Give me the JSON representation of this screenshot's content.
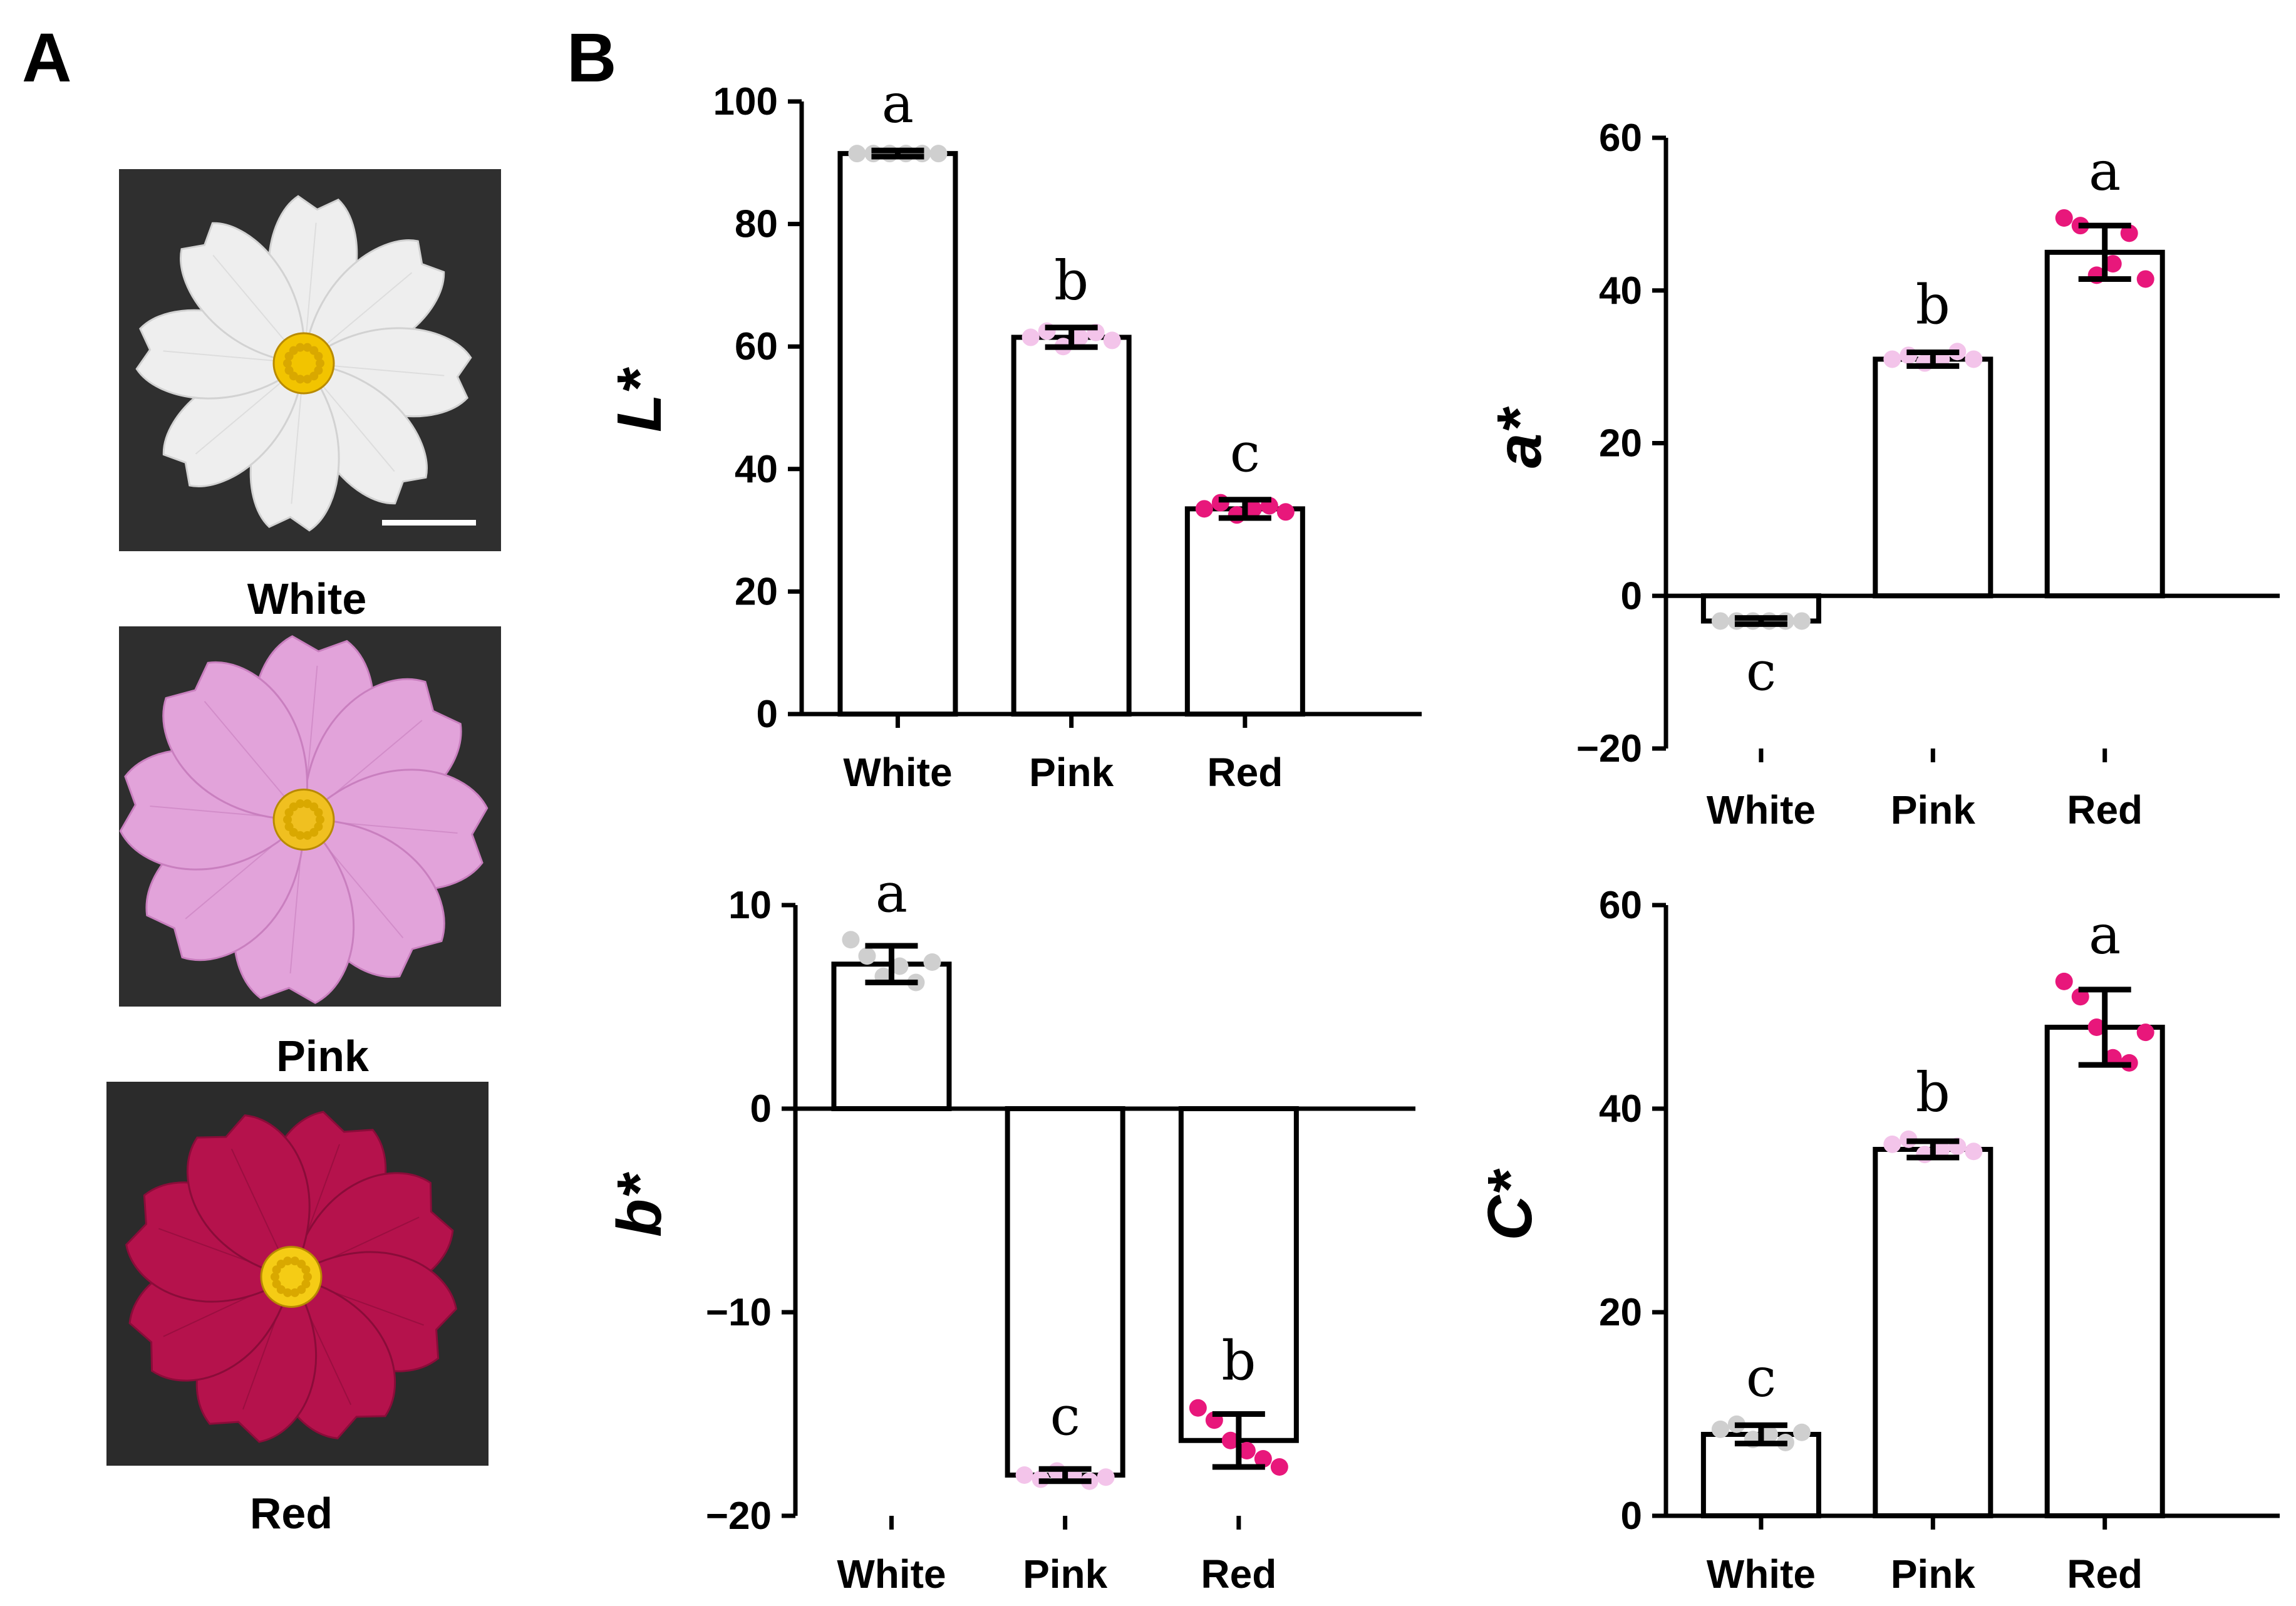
{
  "panel_labels": {
    "a": "A",
    "b": "B"
  },
  "photos": [
    {
      "label": "White",
      "bg": "#2f2f2f",
      "petal": "#eeeeee",
      "petal_edge": "#d2d2d2",
      "center": "#f2c400"
    },
    {
      "label": "Pink",
      "bg": "#2e2e2e",
      "petal": "#e2a3da",
      "petal_edge": "#c97fbf",
      "center": "#f0c020"
    },
    {
      "label": "Red",
      "bg": "#2b2b2b",
      "petal": "#b5124c",
      "petal_edge": "#8a0c39",
      "center": "#f5cc15"
    }
  ],
  "colors": {
    "White": "#cfcfcf",
    "Pink": "#f3c4ea",
    "Red": "#e8177b"
  },
  "chart_data": [
    {
      "type": "bar",
      "title": "",
      "ylabel": "L*",
      "xlabel": "",
      "categories": [
        "White",
        "Pink",
        "Red"
      ],
      "values": [
        91.5,
        61.5,
        33.5
      ],
      "errors": [
        0.5,
        1.6,
        1.5
      ],
      "points": [
        [
          91.5,
          91.5,
          91.5,
          91.5,
          91.5,
          91.5
        ],
        [
          61.5,
          62.5,
          60.0,
          61.5,
          62.3,
          61.0
        ],
        [
          33.5,
          34.5,
          32.5,
          33.5,
          34.0,
          33.0
        ]
      ],
      "letters": [
        "a",
        "b",
        "c"
      ],
      "ylim": [
        0,
        100
      ],
      "yticks": [
        0,
        20,
        40,
        60,
        80,
        100
      ],
      "tick_labels": [
        "0",
        "20",
        "40",
        "60",
        "80",
        "100"
      ]
    },
    {
      "type": "bar",
      "title": "",
      "ylabel": "a*",
      "xlabel": "",
      "categories": [
        "White",
        "Pink",
        "Red"
      ],
      "values": [
        -3.3,
        31.0,
        45.0
      ],
      "errors": [
        0.4,
        0.9,
        3.5
      ],
      "points": [
        [
          -3.3,
          -3.3,
          -3.3,
          -3.3,
          -3.3,
          -3.3
        ],
        [
          31.0,
          31.5,
          30.5,
          31.0,
          32.0,
          31.0
        ],
        [
          49.5,
          48.5,
          42.0,
          43.5,
          47.5,
          41.5
        ]
      ],
      "letters": [
        "c",
        "b",
        "a"
      ],
      "ylim": [
        -20,
        60
      ],
      "yticks": [
        -20,
        0,
        20,
        40,
        60
      ],
      "tick_labels": [
        "−20",
        "0",
        "20",
        "40",
        "60"
      ]
    },
    {
      "type": "bar",
      "title": "",
      "ylabel": "b*",
      "xlabel": "",
      "categories": [
        "White",
        "Pink",
        "Red"
      ],
      "values": [
        7.1,
        -18.0,
        -16.3
      ],
      "errors": [
        0.9,
        0.3,
        1.3
      ],
      "points": [
        [
          8.3,
          7.5,
          6.5,
          7.0,
          6.2,
          7.2
        ],
        [
          -18.0,
          -18.2,
          -17.8,
          -18.0,
          -18.3,
          -18.1
        ],
        [
          -14.7,
          -15.3,
          -16.3,
          -16.8,
          -17.2,
          -17.6
        ]
      ],
      "letters": [
        "a",
        "c",
        "b"
      ],
      "ylim": [
        -20,
        10
      ],
      "yticks": [
        -20,
        -10,
        0,
        10
      ],
      "tick_labels": [
        "−20",
        "−10",
        "0",
        "10"
      ]
    },
    {
      "type": "bar",
      "title": "",
      "ylabel": "C*",
      "xlabel": "",
      "categories": [
        "White",
        "Pink",
        "Red"
      ],
      "values": [
        8.0,
        36.0,
        48.0
      ],
      "errors": [
        0.9,
        0.8,
        3.7
      ],
      "points": [
        [
          8.5,
          9.0,
          7.5,
          8.0,
          7.2,
          8.2
        ],
        [
          36.5,
          37.0,
          35.5,
          36.0,
          36.3,
          35.8
        ],
        [
          52.5,
          51.0,
          48.0,
          45.0,
          44.5,
          47.5
        ]
      ],
      "letters": [
        "c",
        "b",
        "a"
      ],
      "ylim": [
        0,
        60
      ],
      "yticks": [
        0,
        20,
        40,
        60
      ],
      "tick_labels": [
        "0",
        "20",
        "40",
        "60"
      ]
    }
  ]
}
